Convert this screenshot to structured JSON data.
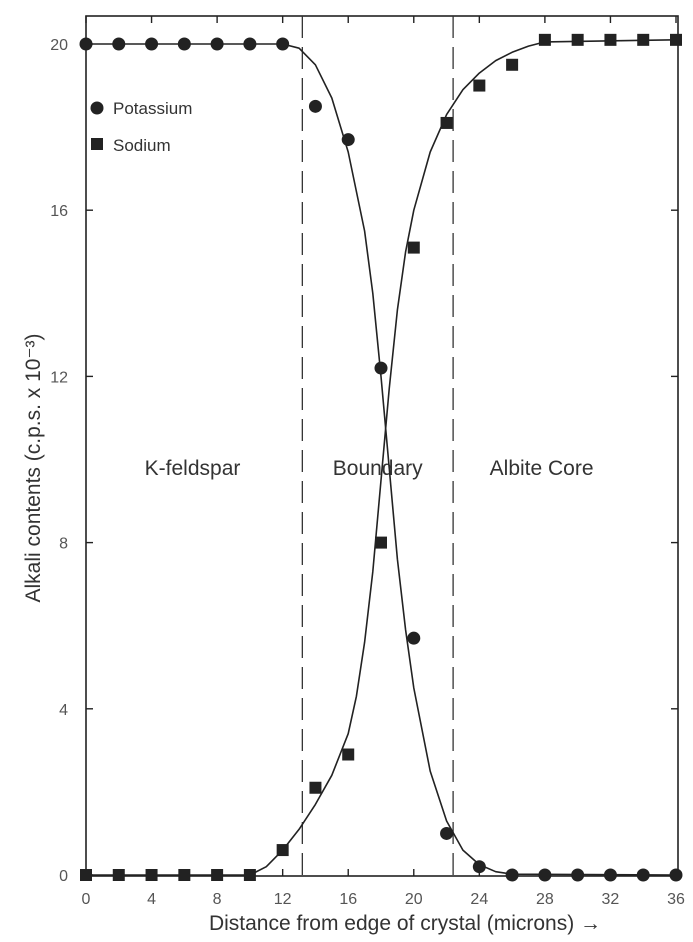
{
  "chart_data": {
    "type": "scatter",
    "xlabel": "Distance from edge of crystal (microns) →",
    "ylabel": "Alkali contents (c.p.s. x 10⁻³)",
    "xlim": [
      0,
      36
    ],
    "ylim": [
      0,
      20
    ],
    "xticks": [
      0,
      4,
      8,
      12,
      16,
      20,
      24,
      28,
      32,
      36
    ],
    "yticks": [
      0,
      4,
      8,
      12,
      16,
      20
    ],
    "grid": false,
    "legend_position": "top-left",
    "boundaries": [
      13.2,
      22.4
    ],
    "regions": [
      {
        "label": "K-feldspar",
        "x": 6.5
      },
      {
        "label": "Boundary",
        "x": 17.8
      },
      {
        "label": "Albite Core",
        "x": 27.8
      }
    ],
    "series": [
      {
        "name": "Potassium",
        "marker": "circle",
        "x": [
          0,
          2,
          4,
          6,
          8,
          10,
          12,
          14,
          16,
          18,
          20,
          22,
          24,
          26,
          28,
          30,
          32,
          34,
          36
        ],
        "y": [
          20,
          20,
          20,
          20,
          20,
          20,
          20,
          18.5,
          17.7,
          12.2,
          5.7,
          1.0,
          0.2,
          0,
          0,
          0,
          0,
          0,
          0
        ],
        "curve_x": [
          0,
          10,
          12,
          13,
          14,
          15,
          16,
          17,
          17.5,
          18,
          18.5,
          19,
          19.5,
          20,
          21,
          22,
          23,
          24,
          25,
          26,
          36
        ],
        "curve_y": [
          20,
          20,
          20,
          19.9,
          19.5,
          18.7,
          17.4,
          15.5,
          14.0,
          12.0,
          9.8,
          7.6,
          5.9,
          4.5,
          2.5,
          1.3,
          0.6,
          0.25,
          0.08,
          0.02,
          0
        ]
      },
      {
        "name": "Sodium",
        "marker": "square",
        "x": [
          0,
          2,
          4,
          6,
          8,
          10,
          12,
          14,
          16,
          18,
          20,
          22,
          24,
          26,
          28,
          30,
          32,
          34,
          36
        ],
        "y": [
          0,
          0,
          0,
          0,
          0,
          0,
          0.6,
          2.1,
          2.9,
          8.0,
          15.1,
          18.1,
          19.0,
          19.5,
          20.1,
          20.1,
          20.1,
          20.1,
          20.1
        ],
        "curve_x": [
          0,
          10,
          11,
          12,
          13,
          14,
          15,
          16,
          16.5,
          17,
          17.5,
          18,
          18.5,
          19,
          19.5,
          20,
          21,
          22,
          23,
          24,
          25,
          26,
          27,
          28,
          36
        ],
        "curve_y": [
          0,
          0,
          0.2,
          0.6,
          1.1,
          1.7,
          2.4,
          3.4,
          4.3,
          5.6,
          7.3,
          9.5,
          11.7,
          13.6,
          15.0,
          16.0,
          17.4,
          18.3,
          18.9,
          19.3,
          19.6,
          19.8,
          19.95,
          20.05,
          20.1
        ]
      }
    ]
  }
}
